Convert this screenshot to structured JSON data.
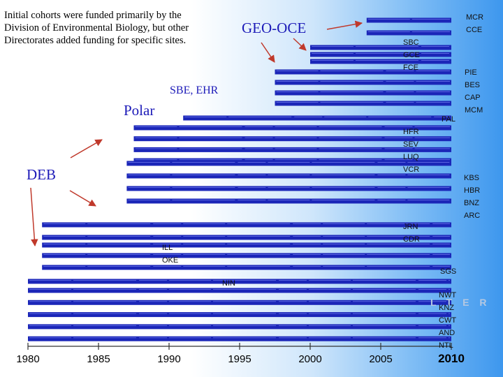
{
  "intro_text": "Initial cohorts were funded primarily by the Division of Environmental Biology, but other Directorates added funding for specific sites.",
  "group_labels": {
    "geo": "GEO-OCE",
    "sbe": "SBE, EHR",
    "polar": "Polar",
    "deb": "DEB"
  },
  "logo_text": "LTER",
  "colors": {
    "bar": "#1b26b8",
    "arrow": "#c0392b",
    "group_text": "#1c1ab8",
    "axis": "#333333"
  },
  "chart_data": {
    "type": "bar",
    "orientation": "horizontal",
    "title": "",
    "xlabel": "",
    "ylabel": "",
    "xlim": [
      1980,
      2010
    ],
    "x_ticks": [
      1980,
      1985,
      1990,
      1995,
      2000,
      2005,
      2010
    ],
    "site_groups": [
      {
        "sites": [
          "MCR",
          "CCE"
        ],
        "start": 2004
      },
      {
        "sites": [
          "SBC",
          "GCE",
          "FCE"
        ],
        "start": 2000
      },
      {
        "sites": [
          "PIE",
          "BES",
          "CAP",
          "MCM"
        ],
        "start": 1997.5
      },
      {
        "sites": [
          "PAL"
        ],
        "start": 1991
      },
      {
        "sites": [
          "HFR",
          "SEV",
          "LUQ",
          "VCR"
        ],
        "start": 1987.5
      },
      {
        "sites": [
          "KBS",
          "HBR",
          "BNZ",
          "ARC"
        ],
        "start": 1987
      },
      {
        "sites": [
          "JRN",
          "CDR"
        ],
        "start": 1981
      },
      {
        "sites": [
          "ILL",
          "OKE"
        ],
        "start": 1981
      },
      {
        "sites": [
          "SGS"
        ],
        "start": 1981
      },
      {
        "sites": [
          "NIN"
        ],
        "start": 1980
      },
      {
        "sites": [
          "NWT",
          "KNZ",
          "CWT",
          "AND",
          "NTL"
        ],
        "start": 1980
      }
    ]
  }
}
